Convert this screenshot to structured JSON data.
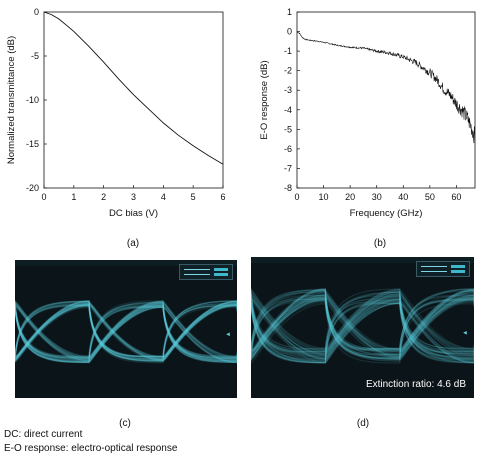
{
  "chart_data": [
    {
      "type": "line",
      "panel": "(a)",
      "xlabel": "DC bias (V)",
      "ylabel": "Normalized transmittance (dB)",
      "xlim": [
        0,
        6
      ],
      "ylim": [
        -20,
        0
      ],
      "xticks": [
        0,
        1,
        2,
        3,
        4,
        5,
        6
      ],
      "yticks": [
        0,
        -5,
        -10,
        -15,
        -20
      ],
      "series": [
        {
          "x": [
            0,
            0.25,
            0.5,
            0.75,
            1,
            1.5,
            2,
            2.5,
            3,
            3.5,
            4,
            4.5,
            5,
            5.5,
            6
          ],
          "values": [
            0,
            -0.3,
            -0.8,
            -1.5,
            -2.2,
            -3.9,
            -5.7,
            -7.6,
            -9.4,
            -11.0,
            -12.6,
            -14.0,
            -15.2,
            -16.3,
            -17.3
          ]
        }
      ],
      "grid": false
    },
    {
      "type": "line",
      "panel": "(b)",
      "xlabel": "Frequency (GHz)",
      "ylabel": "E-O response (dB)",
      "xlim": [
        0,
        67
      ],
      "ylim": [
        -8,
        1
      ],
      "xticks": [
        0,
        10,
        20,
        30,
        40,
        50,
        60
      ],
      "yticks": [
        1,
        0,
        -1,
        -2,
        -3,
        -4,
        -5,
        -6,
        -7,
        -8
      ],
      "series": [
        {
          "x": [
            0,
            1,
            2,
            3,
            5,
            8,
            10,
            15,
            20,
            25,
            30,
            35,
            40,
            45,
            48,
            50,
            53,
            55,
            58,
            60,
            62,
            64,
            66,
            67
          ],
          "values": [
            0,
            -0.1,
            -0.3,
            -0.4,
            -0.45,
            -0.5,
            -0.55,
            -0.7,
            -0.8,
            -0.85,
            -1.0,
            -1.1,
            -1.3,
            -1.6,
            -1.9,
            -2.1,
            -2.5,
            -2.9,
            -3.3,
            -3.7,
            -4.0,
            -4.4,
            -5.0,
            -5.4
          ]
        }
      ],
      "grid": false,
      "noisy": true
    }
  ],
  "panels": {
    "a": "(a)",
    "b": "(b)",
    "c": "(c)",
    "d": "(d)"
  },
  "eye_d": {
    "extinction": "Extinction ratio: 4.6 dB"
  },
  "notes": [
    "DC: direct current",
    "E-O response: electro-optical response"
  ],
  "colors": {
    "eye": "#5fd0e0",
    "scope_bg": "#0b1418"
  }
}
